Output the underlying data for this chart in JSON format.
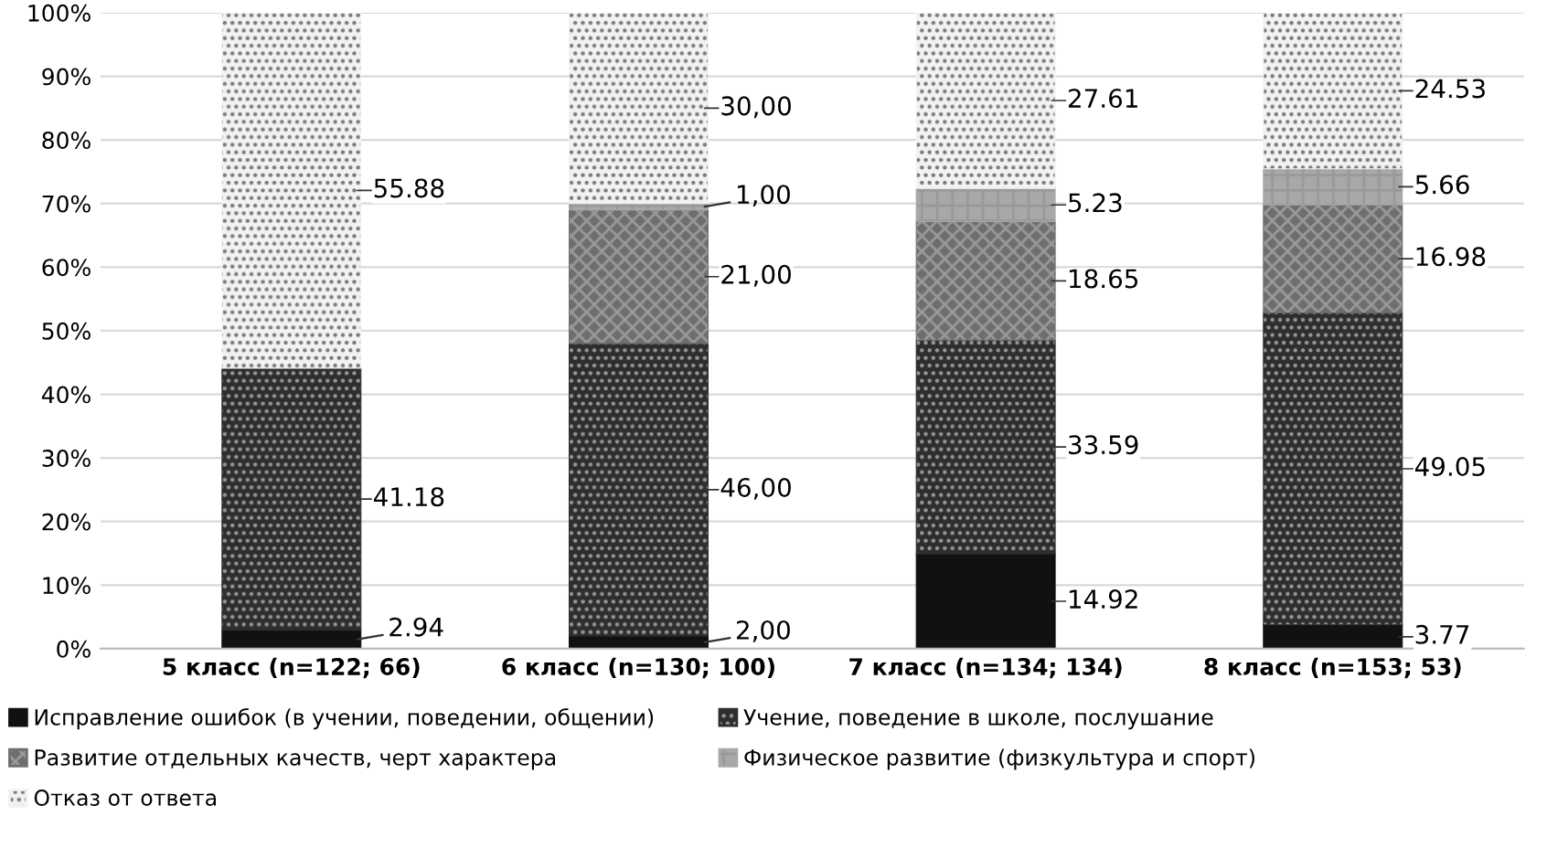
{
  "chart_data": {
    "type": "bar",
    "stacked": true,
    "categories": [
      "5 класс (n=122; 66)",
      "6 класс (n=130; 100)",
      "7 класс (n=134; 134)",
      "8 класс (n=153; 53)"
    ],
    "series": [
      {
        "name": "Исправление ошибок (в учении, поведении, общении)",
        "color": "#111111",
        "values": [
          2.94,
          2.0,
          14.92,
          3.77
        ],
        "value_labels": [
          "2.94",
          "2,00",
          "14.92",
          "3.77"
        ]
      },
      {
        "name": "Учение, поведение в школе, послушание",
        "color": "#2e2e2e",
        "values": [
          41.18,
          46.0,
          33.59,
          49.05
        ],
        "value_labels": [
          "41.18",
          "46,00",
          "33.59",
          "49.05"
        ]
      },
      {
        "name": "Развитие отдельных качеств, черт характера",
        "color": "#6e6e6e",
        "values": [
          null,
          21.0,
          18.65,
          16.98
        ],
        "value_labels": [
          null,
          "21,00",
          "18.65",
          "16.98"
        ]
      },
      {
        "name": "Физическое развитие (физкультура и спорт)",
        "color": "#a8a8a8",
        "values": [
          null,
          1.0,
          5.23,
          5.66
        ],
        "value_labels": [
          null,
          "1,00",
          "5.23",
          "5.66"
        ]
      },
      {
        "name": "Отказ от ответа",
        "color": "#f2f2f2",
        "values": [
          55.88,
          30.0,
          27.61,
          24.53
        ],
        "value_labels": [
          "55.88",
          "30,00",
          "27.61",
          "24.53"
        ]
      }
    ],
    "ylim": [
      0,
      100
    ],
    "yticks": [
      {
        "value": 0,
        "label": "0%"
      },
      {
        "value": 10,
        "label": "10%"
      },
      {
        "value": 20,
        "label": "20%"
      },
      {
        "value": 30,
        "label": "30%"
      },
      {
        "value": 40,
        "label": "40%"
      },
      {
        "value": 50,
        "label": "50%"
      },
      {
        "value": 60,
        "label": "60%"
      },
      {
        "value": 70,
        "label": "70%"
      },
      {
        "value": 80,
        "label": "80%"
      },
      {
        "value": 90,
        "label": "90%"
      },
      {
        "value": 100,
        "label": "100%"
      }
    ],
    "grid": "y",
    "legend": "bottom"
  }
}
